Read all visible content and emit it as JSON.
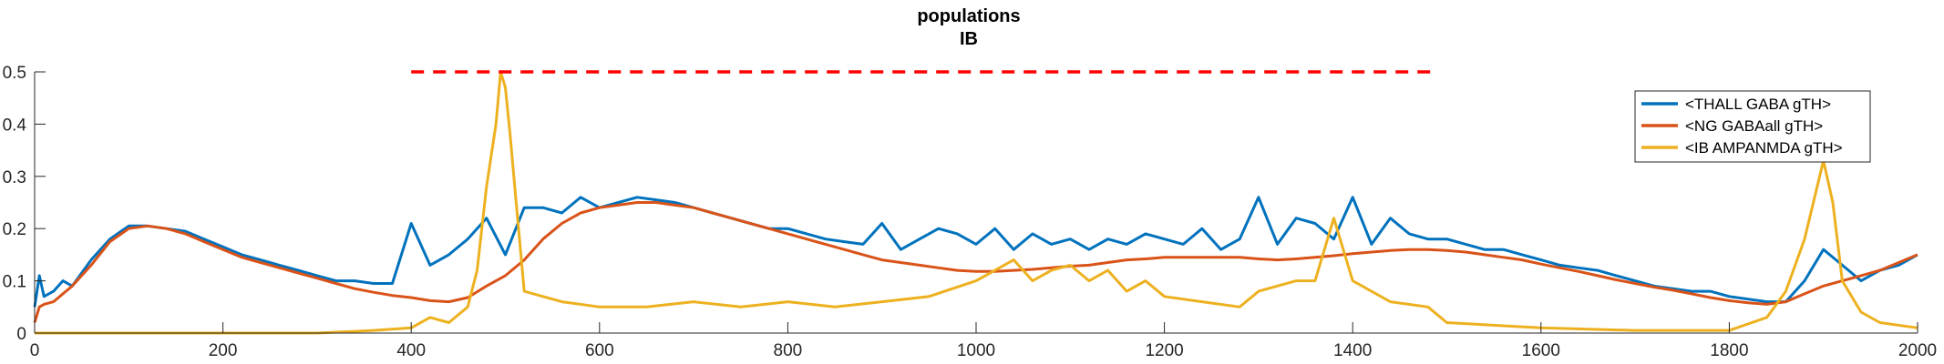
{
  "chart_data": {
    "type": "line",
    "title": "populations",
    "subtitle": "IB",
    "xlabel": "",
    "ylabel": "",
    "xlim": [
      0,
      2000
    ],
    "ylim": [
      0,
      0.5
    ],
    "x_ticks": [
      0,
      200,
      400,
      600,
      800,
      1000,
      1200,
      1400,
      1600,
      1800,
      2000
    ],
    "y_ticks": [
      0,
      0.1,
      0.2,
      0.3,
      0.4,
      0.5
    ],
    "y_tick_labels": [
      "0",
      "0.1",
      "0.2",
      "0.3",
      "0.4",
      "0.5"
    ],
    "grid": false,
    "legend_position": "top-right",
    "series": [
      {
        "name": "<THALL GABA gTH>",
        "color": "#0072BD",
        "x": [
          0,
          5,
          10,
          20,
          30,
          40,
          60,
          80,
          100,
          120,
          140,
          160,
          180,
          200,
          220,
          240,
          260,
          280,
          300,
          320,
          340,
          360,
          380,
          400,
          420,
          440,
          460,
          480,
          500,
          520,
          540,
          560,
          580,
          600,
          620,
          640,
          660,
          680,
          700,
          720,
          740,
          760,
          780,
          800,
          820,
          840,
          860,
          880,
          900,
          920,
          940,
          960,
          980,
          1000,
          1020,
          1040,
          1060,
          1080,
          1100,
          1120,
          1140,
          1160,
          1180,
          1200,
          1220,
          1240,
          1260,
          1280,
          1300,
          1320,
          1340,
          1360,
          1380,
          1400,
          1420,
          1440,
          1460,
          1480,
          1500,
          1520,
          1540,
          1560,
          1580,
          1600,
          1620,
          1640,
          1660,
          1680,
          1700,
          1720,
          1740,
          1760,
          1780,
          1800,
          1820,
          1840,
          1860,
          1880,
          1900,
          1920,
          1940,
          1960,
          1980,
          2000
        ],
        "values": [
          0.05,
          0.11,
          0.07,
          0.08,
          0.1,
          0.09,
          0.14,
          0.18,
          0.205,
          0.205,
          0.2,
          0.195,
          0.18,
          0.165,
          0.15,
          0.14,
          0.13,
          0.12,
          0.11,
          0.1,
          0.1,
          0.095,
          0.095,
          0.21,
          0.13,
          0.15,
          0.18,
          0.22,
          0.15,
          0.24,
          0.24,
          0.23,
          0.26,
          0.24,
          0.25,
          0.26,
          0.255,
          0.25,
          0.24,
          0.23,
          0.22,
          0.21,
          0.2,
          0.2,
          0.19,
          0.18,
          0.175,
          0.17,
          0.21,
          0.16,
          0.18,
          0.2,
          0.19,
          0.17,
          0.2,
          0.16,
          0.19,
          0.17,
          0.18,
          0.16,
          0.18,
          0.17,
          0.19,
          0.18,
          0.17,
          0.2,
          0.16,
          0.18,
          0.26,
          0.17,
          0.22,
          0.21,
          0.18,
          0.26,
          0.17,
          0.22,
          0.19,
          0.18,
          0.18,
          0.17,
          0.16,
          0.16,
          0.15,
          0.14,
          0.13,
          0.125,
          0.12,
          0.11,
          0.1,
          0.09,
          0.085,
          0.08,
          0.08,
          0.07,
          0.065,
          0.06,
          0.06,
          0.1,
          0.16,
          0.13,
          0.1,
          0.12,
          0.13,
          0.15
        ]
      },
      {
        "name": "<NG GABAall gTH>",
        "color": "#D95319",
        "x": [
          0,
          5,
          10,
          20,
          30,
          40,
          60,
          80,
          100,
          120,
          140,
          160,
          180,
          200,
          220,
          240,
          260,
          280,
          300,
          320,
          340,
          360,
          380,
          400,
          420,
          440,
          460,
          480,
          500,
          520,
          540,
          560,
          580,
          600,
          620,
          640,
          660,
          680,
          700,
          720,
          740,
          760,
          780,
          800,
          820,
          840,
          860,
          880,
          900,
          920,
          940,
          960,
          980,
          1000,
          1020,
          1040,
          1060,
          1080,
          1100,
          1120,
          1140,
          1160,
          1180,
          1200,
          1220,
          1240,
          1260,
          1280,
          1300,
          1320,
          1340,
          1360,
          1380,
          1400,
          1420,
          1440,
          1460,
          1480,
          1500,
          1520,
          1540,
          1560,
          1580,
          1600,
          1620,
          1640,
          1660,
          1680,
          1700,
          1720,
          1740,
          1760,
          1780,
          1800,
          1820,
          1840,
          1860,
          1880,
          1900,
          1920,
          1940,
          1960,
          1980,
          2000
        ],
        "values": [
          0.02,
          0.05,
          0.055,
          0.06,
          0.075,
          0.09,
          0.13,
          0.175,
          0.2,
          0.205,
          0.2,
          0.19,
          0.175,
          0.16,
          0.145,
          0.135,
          0.125,
          0.115,
          0.105,
          0.095,
          0.085,
          0.078,
          0.072,
          0.068,
          0.062,
          0.06,
          0.068,
          0.09,
          0.11,
          0.14,
          0.18,
          0.21,
          0.23,
          0.24,
          0.245,
          0.25,
          0.25,
          0.245,
          0.24,
          0.23,
          0.22,
          0.21,
          0.2,
          0.19,
          0.18,
          0.17,
          0.16,
          0.15,
          0.14,
          0.135,
          0.13,
          0.125,
          0.12,
          0.118,
          0.118,
          0.12,
          0.122,
          0.125,
          0.128,
          0.13,
          0.135,
          0.14,
          0.142,
          0.145,
          0.145,
          0.145,
          0.145,
          0.145,
          0.142,
          0.14,
          0.142,
          0.145,
          0.148,
          0.152,
          0.155,
          0.158,
          0.16,
          0.16,
          0.158,
          0.155,
          0.15,
          0.145,
          0.14,
          0.132,
          0.125,
          0.118,
          0.11,
          0.102,
          0.095,
          0.088,
          0.082,
          0.075,
          0.068,
          0.062,
          0.058,
          0.055,
          0.06,
          0.075,
          0.09,
          0.1,
          0.11,
          0.12,
          0.135,
          0.15
        ]
      },
      {
        "name": "<IB AMPANMDA gTH>",
        "color": "#EDB120",
        "x": [
          0,
          100,
          200,
          300,
          360,
          400,
          420,
          440,
          460,
          470,
          480,
          490,
          495,
          500,
          505,
          510,
          520,
          540,
          560,
          600,
          650,
          700,
          750,
          800,
          850,
          900,
          950,
          1000,
          1020,
          1040,
          1060,
          1080,
          1100,
          1120,
          1140,
          1160,
          1180,
          1200,
          1240,
          1280,
          1300,
          1340,
          1360,
          1380,
          1400,
          1440,
          1480,
          1500,
          1600,
          1700,
          1800,
          1840,
          1860,
          1880,
          1900,
          1910,
          1920,
          1940,
          1960,
          2000
        ],
        "values": [
          0.0,
          0.0,
          0.0,
          0.0,
          0.005,
          0.01,
          0.03,
          0.02,
          0.05,
          0.12,
          0.28,
          0.4,
          0.5,
          0.47,
          0.38,
          0.28,
          0.08,
          0.07,
          0.06,
          0.05,
          0.05,
          0.06,
          0.05,
          0.06,
          0.05,
          0.06,
          0.07,
          0.1,
          0.12,
          0.14,
          0.1,
          0.12,
          0.13,
          0.1,
          0.12,
          0.08,
          0.1,
          0.07,
          0.06,
          0.05,
          0.08,
          0.1,
          0.1,
          0.22,
          0.1,
          0.06,
          0.05,
          0.02,
          0.01,
          0.005,
          0.005,
          0.03,
          0.08,
          0.18,
          0.33,
          0.25,
          0.1,
          0.04,
          0.02,
          0.01
        ]
      }
    ],
    "annotations": [
      {
        "type": "dashed-hline",
        "color": "#FF0000",
        "y": 0.5,
        "x_start": 400,
        "x_end": 1490
      }
    ]
  }
}
